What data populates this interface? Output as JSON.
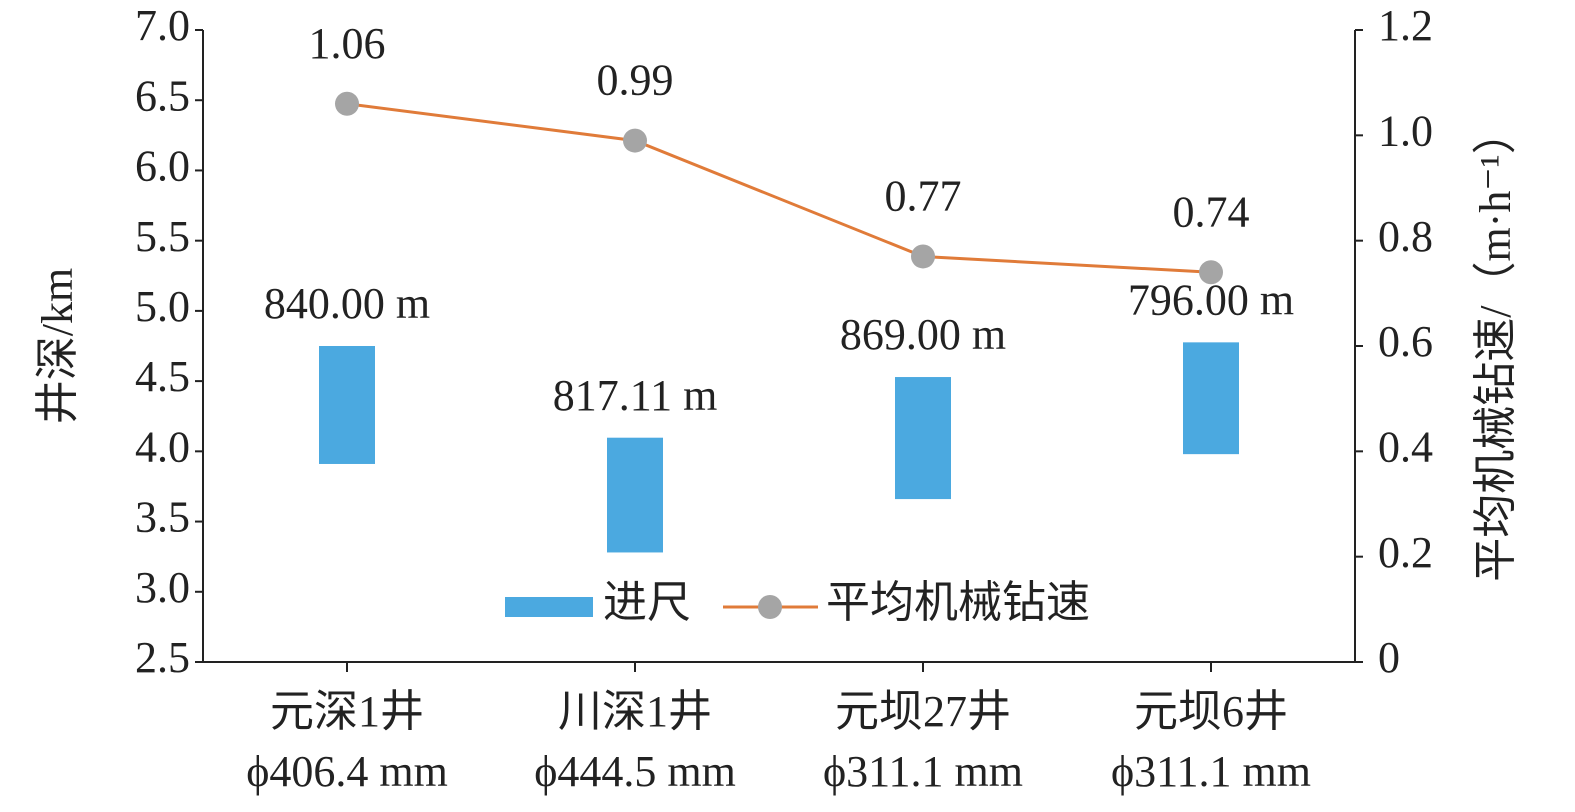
{
  "chart_data": {
    "type": "combo",
    "categories": [
      [
        "元深1井",
        "ϕ406.4 mm"
      ],
      [
        "川深1井",
        "ϕ444.5 mm"
      ],
      [
        "元坝27井",
        "ϕ311.1 mm"
      ],
      [
        "元坝6井",
        "ϕ311.1 mm"
      ]
    ],
    "ylabel": "井深/km",
    "y2label": "平均机械钻速/（m·h⁻¹）",
    "ylim": [
      2.5,
      7.0
    ],
    "yticks": [
      2.5,
      {
        "value": 3,
        "label": "3.0"
      },
      3.5,
      {
        "value": 4,
        "label": "4.0"
      },
      4.5,
      {
        "value": 5,
        "label": "5.0"
      },
      5.5,
      {
        "value": 6,
        "label": "6.0"
      },
      6.5,
      {
        "value": 7,
        "label": "7.0"
      }
    ],
    "y2lim": [
      0,
      1.2
    ],
    "y2ticks": [
      0,
      0.2,
      0.4,
      0.6,
      0.8,
      {
        "value": 1,
        "label": "1.0"
      },
      1.2
    ],
    "legend": "bottom",
    "series": [
      {
        "name": "进尺",
        "type": "bar",
        "color": "#4ba9e0",
        "base": [
          3.91,
          3.28,
          3.66,
          3.98
        ],
        "values": [
          0.84,
          0.81711,
          0.869,
          0.796
        ],
        "value_labels": [
          "840.00 m",
          "817.11 m",
          "869.00 m",
          "796.00 m"
        ]
      },
      {
        "name": "平均机械钻速",
        "type": "line",
        "axis": "y2",
        "color": "#e07b39",
        "marker_color": "#a5a5a5",
        "values": [
          1.06,
          0.99,
          0.77,
          0.74
        ]
      }
    ]
  }
}
